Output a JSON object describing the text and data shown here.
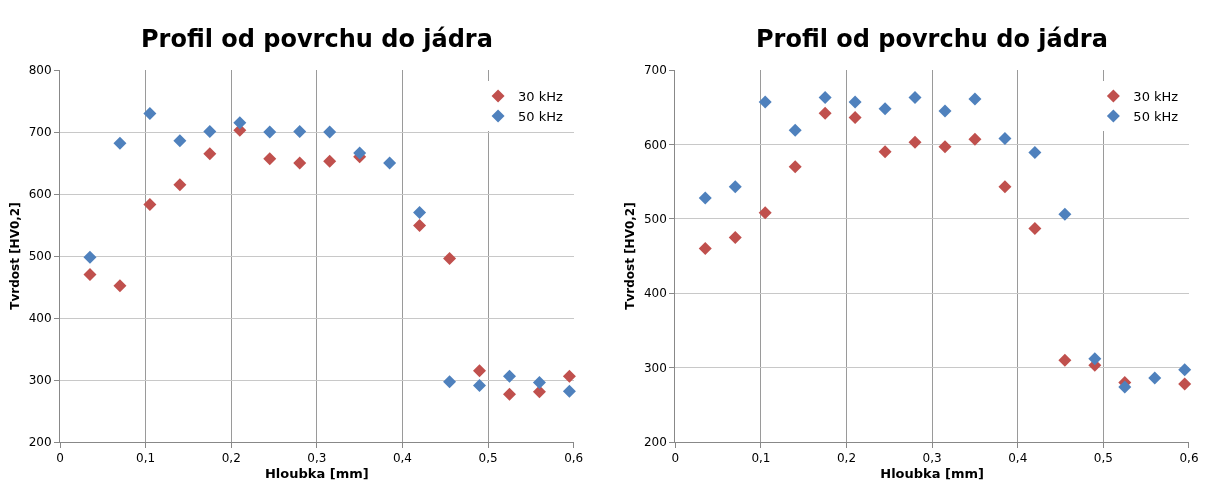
{
  "chart_data": [
    {
      "type": "scatter",
      "title": "Profil od povrchu do jádra",
      "xlabel": "Hloubka [mm]",
      "ylabel": "Tvrdost [HV0,2]",
      "x": [
        0.035,
        0.07,
        0.105,
        0.14,
        0.175,
        0.21,
        0.245,
        0.28,
        0.315,
        0.35,
        0.385,
        0.42,
        0.455,
        0.49,
        0.525,
        0.56,
        0.595
      ],
      "series": [
        {
          "name": "30 kHz",
          "color": "#c0504d",
          "values": [
            470,
            452,
            583,
            615,
            665,
            703,
            657,
            650,
            653,
            660,
            null,
            549,
            496,
            315,
            277,
            281,
            306
          ]
        },
        {
          "name": "50 kHz",
          "color": "#4f81bd",
          "values": [
            498,
            682,
            730,
            686,
            701,
            715,
            700,
            701,
            700,
            666,
            650,
            570,
            297,
            291,
            306,
            296,
            282
          ]
        }
      ],
      "xlim": [
        0,
        0.6
      ],
      "xticks": [
        {
          "value": 0,
          "label": "0"
        },
        {
          "value": 0.1,
          "label": "0,1"
        },
        {
          "value": 0.2,
          "label": "0,2"
        },
        {
          "value": 0.3,
          "label": "0,3"
        },
        {
          "value": 0.4,
          "label": "0,4"
        },
        {
          "value": 0.5,
          "label": "0,5"
        },
        {
          "value": 0.6,
          "label": "0,6"
        }
      ],
      "ylim": [
        200,
        800
      ],
      "yticks": [
        200,
        300,
        400,
        500,
        600,
        700,
        800
      ],
      "grid": true,
      "legend": "top right",
      "marker": "diamond"
    },
    {
      "type": "scatter",
      "title": "Profil od povrchu do jádra",
      "xlabel": "Hloubka [mm]",
      "ylabel": "Tvrdost [HV0,2]",
      "x": [
        0.035,
        0.07,
        0.105,
        0.14,
        0.175,
        0.21,
        0.245,
        0.28,
        0.315,
        0.35,
        0.385,
        0.42,
        0.455,
        0.49,
        0.525,
        0.56,
        0.595
      ],
      "series": [
        {
          "name": "30 kHz",
          "color": "#c0504d",
          "values": [
            460,
            475,
            508,
            570,
            642,
            636,
            590,
            603,
            597,
            607,
            543,
            487,
            310,
            303,
            280,
            null,
            278
          ]
        },
        {
          "name": "50 kHz",
          "color": "#4f81bd",
          "values": [
            528,
            543,
            657,
            619,
            663,
            657,
            648,
            663,
            645,
            661,
            608,
            589,
            506,
            312,
            274,
            286,
            297
          ]
        }
      ],
      "xlim": [
        0,
        0.6
      ],
      "xticks": [
        {
          "value": 0,
          "label": "0"
        },
        {
          "value": 0.1,
          "label": "0,1"
        },
        {
          "value": 0.2,
          "label": "0,2"
        },
        {
          "value": 0.3,
          "label": "0,3"
        },
        {
          "value": 0.4,
          "label": "0,4"
        },
        {
          "value": 0.5,
          "label": "0,5"
        },
        {
          "value": 0.6,
          "label": "0,6"
        }
      ],
      "ylim": [
        200,
        700
      ],
      "yticks": [
        200,
        300,
        400,
        500,
        600,
        700
      ],
      "grid": true,
      "legend": "top right",
      "marker": "diamond"
    }
  ]
}
